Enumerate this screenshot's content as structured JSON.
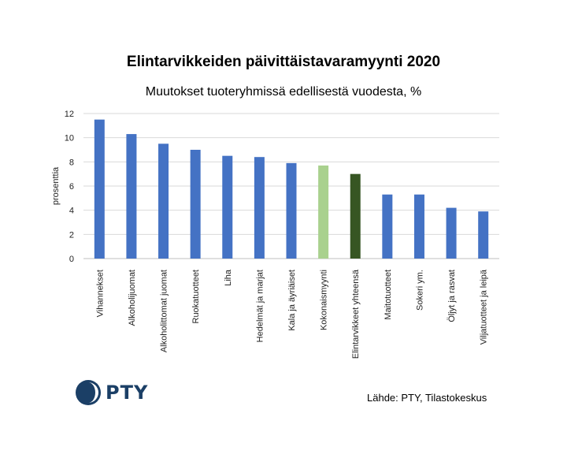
{
  "title": "Elintarvikkeiden päivittäistavaramyynti 2020",
  "subtitle": "Muutokset tuoteryhmissä edellisestä vuodesta, %",
  "logo_text": "PTY",
  "source": "Lähde: PTY, Tilastokeskus",
  "chart_data": {
    "type": "bar",
    "ylabel": "prosenttia",
    "ylim": [
      0,
      12
    ],
    "yticks": [
      0,
      2,
      4,
      6,
      8,
      10,
      12
    ],
    "grid": true,
    "categories": [
      "Vihannekset",
      "Alkoholijuomat",
      "Alkoholittomat juomat",
      "Ruokatuotteet",
      "Liha",
      "Hedelmät ja marjat",
      "Kala ja äyriäiset",
      "Kokonaismyynti",
      "Elintarvikkeet yhteensä",
      "Maitotuotteet",
      "Sokeri ym.",
      "Öljyt ja rasvat",
      "Viljatuotteet ja leipä"
    ],
    "values": [
      11.5,
      10.3,
      9.5,
      9.0,
      8.5,
      8.4,
      7.9,
      7.7,
      7.0,
      5.3,
      5.3,
      4.2,
      3.9
    ],
    "colors": [
      "#4472c4",
      "#4472c4",
      "#4472c4",
      "#4472c4",
      "#4472c4",
      "#4472c4",
      "#4472c4",
      "#a9d18e",
      "#375623",
      "#4472c4",
      "#4472c4",
      "#4472c4",
      "#4472c4"
    ]
  }
}
